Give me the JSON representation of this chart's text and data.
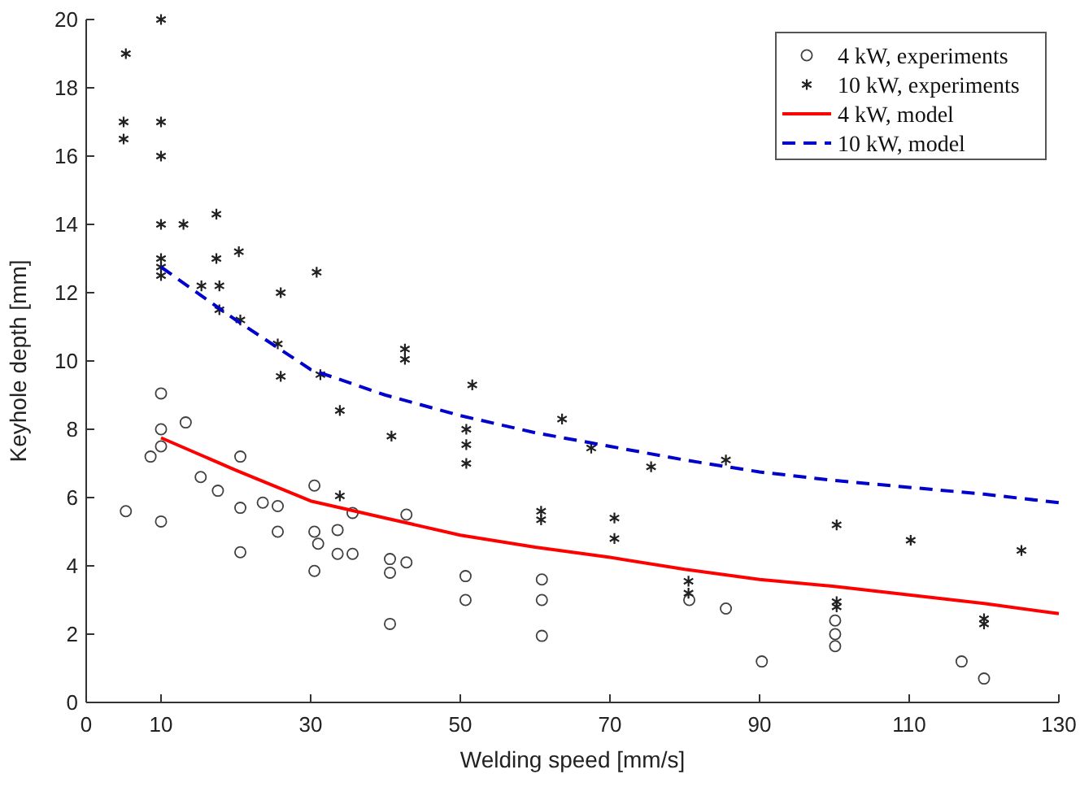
{
  "chart_data": {
    "type": "scatter",
    "xlabel": "Welding speed [mm/s]",
    "ylabel": "Keyhole depth [mm]",
    "xlim": [
      0,
      130
    ],
    "xticks": [
      0,
      10,
      30,
      50,
      70,
      90,
      110,
      130
    ],
    "ylim": [
      0,
      20
    ],
    "yticks": [
      0,
      2,
      4,
      6,
      8,
      10,
      12,
      14,
      16,
      18,
      20
    ],
    "grid": false,
    "legend": "top right",
    "series": [
      {
        "name": "4 kW, experiments",
        "marker": "circle",
        "color": "#404040",
        "x": [
          5.3,
          8.6,
          10,
          10,
          10,
          10,
          13.3,
          15.3,
          17.6,
          20.6,
          20.6,
          20.6,
          23.6,
          25.6,
          25.6,
          30.5,
          30.5,
          31,
          30.5,
          33.6,
          33.6,
          35.6,
          35.6,
          40.6,
          40.6,
          40.6,
          42.8,
          42.8,
          50.7,
          50.7,
          60.9,
          60.9,
          60.9,
          80.6,
          85.5,
          90.3,
          100.1,
          100.1,
          100.1,
          117,
          120
        ],
        "values": [
          5.6,
          7.2,
          9.05,
          8.0,
          7.5,
          5.3,
          8.2,
          6.6,
          6.2,
          7.2,
          5.7,
          4.4,
          5.85,
          5.75,
          5.0,
          6.35,
          5.0,
          4.65,
          3.85,
          5.05,
          4.35,
          5.55,
          4.35,
          4.2,
          3.8,
          2.3,
          5.5,
          4.1,
          3.7,
          3.0,
          3.6,
          3.0,
          1.95,
          3.0,
          2.75,
          1.2,
          2.4,
          2.0,
          1.65,
          1.2,
          0.7
        ]
      },
      {
        "name": "10 kW, experiments",
        "marker": "cross",
        "color": "#202020",
        "x": [
          10,
          5.3,
          5,
          5,
          10,
          10,
          10,
          13,
          17.4,
          10,
          10,
          10,
          17.4,
          20.4,
          15.4,
          17.8,
          17.8,
          20.6,
          30.8,
          26,
          25.6,
          26,
          31.3,
          42.6,
          42.6,
          33.9,
          40.8,
          33.9,
          51.6,
          50.8,
          50.8,
          50.8,
          63.6,
          67.5,
          75.5,
          60.8,
          60.8,
          70.6,
          70.6,
          80.5,
          80.5,
          85.5,
          100.3,
          100.3,
          100.3,
          110.2,
          120,
          120,
          125
        ],
        "values": [
          20.0,
          19.0,
          17.0,
          16.5,
          17.0,
          16.0,
          14.0,
          14.0,
          14.3,
          13.0,
          12.75,
          12.5,
          13.0,
          13.2,
          12.2,
          12.2,
          11.5,
          11.2,
          12.6,
          12.0,
          10.5,
          9.55,
          9.6,
          10.35,
          10.05,
          8.55,
          7.8,
          6.05,
          9.3,
          8.0,
          7.55,
          7.0,
          8.3,
          7.45,
          6.9,
          5.6,
          5.35,
          5.4,
          4.8,
          3.55,
          3.2,
          7.1,
          5.2,
          2.95,
          2.8,
          4.75,
          2.45,
          2.3,
          4.45
        ]
      },
      {
        "name": "4 kW, model",
        "type": "line",
        "marker": "none",
        "line_style": "solid",
        "color": "#ff0000",
        "x": [
          10,
          20,
          30,
          40,
          50,
          60,
          70,
          80,
          90,
          100,
          110,
          120,
          130
        ],
        "values": [
          7.75,
          6.8,
          5.9,
          5.4,
          4.9,
          4.55,
          4.25,
          3.9,
          3.6,
          3.4,
          3.15,
          2.9,
          2.6
        ]
      },
      {
        "name": "10 kW, model",
        "type": "line",
        "marker": "none",
        "line_style": "dashed",
        "color": "#0000cc",
        "x": [
          10,
          20,
          30,
          40,
          50,
          60,
          70,
          80,
          90,
          100,
          110,
          120,
          130
        ],
        "values": [
          12.75,
          11.2,
          9.75,
          9.0,
          8.4,
          7.9,
          7.5,
          7.1,
          6.75,
          6.5,
          6.3,
          6.1,
          5.85
        ]
      }
    ]
  }
}
